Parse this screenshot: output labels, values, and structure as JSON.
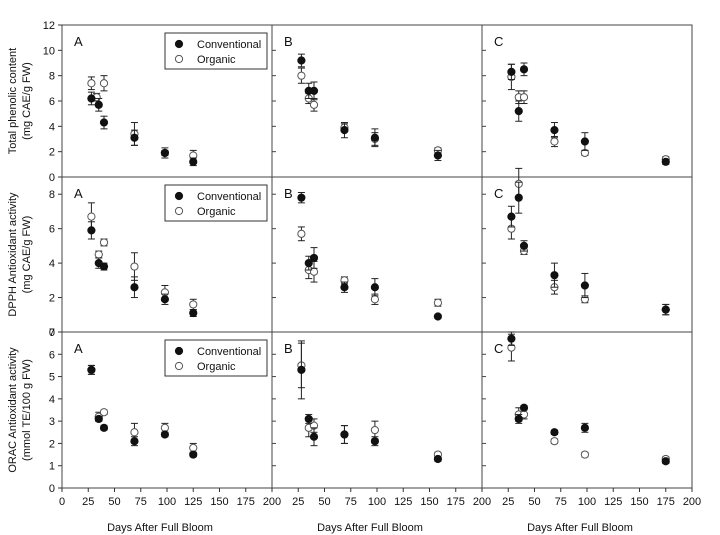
{
  "chart_data": {
    "type": "scatter",
    "xlabel": "Days After Full Bloom",
    "xlim": [
      0,
      200
    ],
    "xticks": [
      0,
      25,
      50,
      75,
      100,
      125,
      150,
      175,
      200
    ],
    "series_names": [
      "Conventional",
      "Organic"
    ],
    "legend_position": "top-right",
    "grid": false,
    "rows": [
      {
        "ylabel": [
          "Total phenolic content",
          "(mg CAE/g FW)"
        ],
        "ylim": [
          0,
          12
        ],
        "yticks": [
          0,
          2,
          4,
          6,
          8,
          10,
          12
        ],
        "show_legend": true,
        "panels": [
          {
            "label": "A",
            "conventional": [
              {
                "x": 28,
                "y": 6.2,
                "err": 0.5
              },
              {
                "x": 35,
                "y": 5.7,
                "err": 0.5
              },
              {
                "x": 40,
                "y": 4.3,
                "err": 0.5
              },
              {
                "x": 69,
                "y": 3.1,
                "err": 0.6
              },
              {
                "x": 98,
                "y": 1.9,
                "err": 0.2
              },
              {
                "x": 125,
                "y": 1.2,
                "err": 0.3
              }
            ],
            "organic": [
              {
                "x": 28,
                "y": 7.4,
                "err": 0.5
              },
              {
                "x": 33,
                "y": 6.3,
                "err": 0.3
              },
              {
                "x": 40,
                "y": 7.4,
                "err": 0.6
              },
              {
                "x": 69,
                "y": 3.4,
                "err": 0.9
              },
              {
                "x": 98,
                "y": 1.9,
                "err": 0.4
              },
              {
                "x": 125,
                "y": 1.7,
                "err": 0.4
              }
            ]
          },
          {
            "label": "B",
            "conventional": [
              {
                "x": 28,
                "y": 9.2,
                "err": 0.5
              },
              {
                "x": 35,
                "y": 6.8,
                "err": 0.6
              },
              {
                "x": 40,
                "y": 6.8,
                "err": 0.7
              },
              {
                "x": 69,
                "y": 3.7,
                "err": 0.6
              },
              {
                "x": 98,
                "y": 3.1,
                "err": 0.7
              },
              {
                "x": 158,
                "y": 1.7,
                "err": 0.4
              }
            ],
            "organic": [
              {
                "x": 28,
                "y": 8.0,
                "err": 0.6
              },
              {
                "x": 35,
                "y": 6.2,
                "err": 0.4
              },
              {
                "x": 40,
                "y": 5.7,
                "err": 0.5
              },
              {
                "x": 69,
                "y": 3.9,
                "err": 0.3
              },
              {
                "x": 98,
                "y": 3.0,
                "err": 0.5
              },
              {
                "x": 158,
                "y": 2.1,
                "err": 0.2
              }
            ]
          },
          {
            "label": "C",
            "conventional": [
              {
                "x": 28,
                "y": 8.3,
                "err": 0.6
              },
              {
                "x": 35,
                "y": 5.2,
                "err": 0.8
              },
              {
                "x": 40,
                "y": 8.5,
                "err": 0.5
              },
              {
                "x": 69,
                "y": 3.7,
                "err": 0.6
              },
              {
                "x": 98,
                "y": 2.8,
                "err": 0.7
              },
              {
                "x": 175,
                "y": 1.2,
                "err": 0.2
              }
            ],
            "organic": [
              {
                "x": 28,
                "y": 7.9,
                "err": 1.0
              },
              {
                "x": 35,
                "y": 6.3,
                "err": 0.5
              },
              {
                "x": 40,
                "y": 6.3,
                "err": 0.5
              },
              {
                "x": 69,
                "y": 2.8,
                "err": 0.4
              },
              {
                "x": 98,
                "y": 1.9,
                "err": 0.2
              },
              {
                "x": 175,
                "y": 1.4,
                "err": 0.2
              }
            ]
          }
        ]
      },
      {
        "ylabel": [
          "DPPH Antioxidant activity",
          "(mg CAE/g FW)"
        ],
        "ylim": [
          0,
          9
        ],
        "yticks": [
          0,
          2,
          4,
          6,
          8
        ],
        "show_legend": true,
        "panels": [
          {
            "label": "A",
            "conventional": [
              {
                "x": 28,
                "y": 5.9,
                "err": 0.5
              },
              {
                "x": 35,
                "y": 4.0,
                "err": 0.3
              },
              {
                "x": 40,
                "y": 3.8,
                "err": 0.2
              },
              {
                "x": 69,
                "y": 2.6,
                "err": 0.6
              },
              {
                "x": 98,
                "y": 1.9,
                "err": 0.3
              },
              {
                "x": 125,
                "y": 1.1,
                "err": 0.2
              }
            ],
            "organic": [
              {
                "x": 28,
                "y": 6.7,
                "err": 0.8
              },
              {
                "x": 35,
                "y": 4.5,
                "err": 0.2
              },
              {
                "x": 40,
                "y": 5.2,
                "err": 0.2
              },
              {
                "x": 69,
                "y": 3.8,
                "err": 0.8
              },
              {
                "x": 98,
                "y": 2.3,
                "err": 0.4
              },
              {
                "x": 125,
                "y": 1.6,
                "err": 0.3
              }
            ]
          },
          {
            "label": "B",
            "conventional": [
              {
                "x": 28,
                "y": 7.8,
                "err": 0.3
              },
              {
                "x": 35,
                "y": 4.0,
                "err": 0.4
              },
              {
                "x": 40,
                "y": 4.3,
                "err": 0.6
              },
              {
                "x": 69,
                "y": 2.6,
                "err": 0.3
              },
              {
                "x": 98,
                "y": 2.6,
                "err": 0.5
              },
              {
                "x": 158,
                "y": 0.9,
                "err": 0.1
              }
            ],
            "organic": [
              {
                "x": 28,
                "y": 5.7,
                "err": 0.4
              },
              {
                "x": 35,
                "y": 3.6,
                "err": 0.5
              },
              {
                "x": 40,
                "y": 3.5,
                "err": 0.6
              },
              {
                "x": 69,
                "y": 3.0,
                "err": 0.2
              },
              {
                "x": 98,
                "y": 1.9,
                "err": 0.3
              },
              {
                "x": 158,
                "y": 1.7,
                "err": 0.2
              }
            ]
          },
          {
            "label": "C",
            "conventional": [
              {
                "x": 28,
                "y": 6.7,
                "err": 0.6
              },
              {
                "x": 35,
                "y": 7.8,
                "err": 0.9
              },
              {
                "x": 40,
                "y": 5.0,
                "err": 0.3
              },
              {
                "x": 69,
                "y": 3.3,
                "err": 0.7
              },
              {
                "x": 98,
                "y": 2.7,
                "err": 0.7
              },
              {
                "x": 175,
                "y": 1.3,
                "err": 0.3
              }
            ],
            "organic": [
              {
                "x": 28,
                "y": 6.0,
                "err": 0.6
              },
              {
                "x": 35,
                "y": 8.6,
                "err": 0.9
              },
              {
                "x": 40,
                "y": 4.7,
                "err": 0.2
              },
              {
                "x": 69,
                "y": 2.6,
                "err": 0.4
              },
              {
                "x": 98,
                "y": 1.9,
                "err": 0.2
              },
              {
                "x": 175,
                "y": 1.3,
                "err": 0.3
              }
            ]
          }
        ]
      },
      {
        "ylabel": [
          "ORAC Antioxidant activity",
          "(mmol TE/100 g FW)"
        ],
        "ylim": [
          0,
          7
        ],
        "yticks": [
          0,
          1,
          2,
          3,
          4,
          5,
          6,
          7
        ],
        "show_legend": true,
        "panels": [
          {
            "label": "A",
            "conventional": [
              {
                "x": 28,
                "y": 5.3,
                "err": 0.2
              },
              {
                "x": 35,
                "y": 3.1,
                "err": 0.1
              },
              {
                "x": 40,
                "y": 2.7,
                "err": 0.1
              },
              {
                "x": 69,
                "y": 2.1,
                "err": 0.2
              },
              {
                "x": 98,
                "y": 2.4,
                "err": 0.1
              },
              {
                "x": 125,
                "y": 1.5,
                "err": 0.1
              }
            ],
            "organic": [
              {
                "x": 28,
                "y": 5.3,
                "err": 0.2
              },
              {
                "x": 35,
                "y": 3.2,
                "err": 0.2
              },
              {
                "x": 40,
                "y": 3.4,
                "err": 0.1
              },
              {
                "x": 69,
                "y": 2.5,
                "err": 0.4
              },
              {
                "x": 98,
                "y": 2.7,
                "err": 0.2
              },
              {
                "x": 125,
                "y": 1.8,
                "err": 0.2
              }
            ]
          },
          {
            "label": "B",
            "conventional": [
              {
                "x": 28,
                "y": 5.3,
                "err": 1.3
              },
              {
                "x": 35,
                "y": 3.1,
                "err": 0.2
              },
              {
                "x": 40,
                "y": 2.3,
                "err": 0.4
              },
              {
                "x": 69,
                "y": 2.4,
                "err": 0.4
              },
              {
                "x": 98,
                "y": 2.1,
                "err": 0.2
              },
              {
                "x": 158,
                "y": 1.3,
                "err": 0.1
              }
            ],
            "organic": [
              {
                "x": 28,
                "y": 5.5,
                "err": 1.0
              },
              {
                "x": 35,
                "y": 2.7,
                "err": 0.4
              },
              {
                "x": 40,
                "y": 2.8,
                "err": 0.3
              },
              {
                "x": 69,
                "y": 2.4,
                "err": 0.4
              },
              {
                "x": 98,
                "y": 2.6,
                "err": 0.4
              },
              {
                "x": 158,
                "y": 1.5,
                "err": 0.1
              }
            ]
          },
          {
            "label": "C",
            "conventional": [
              {
                "x": 28,
                "y": 6.7,
                "err": 0.3
              },
              {
                "x": 35,
                "y": 3.1,
                "err": 0.2
              },
              {
                "x": 40,
                "y": 3.6,
                "err": 0.1
              },
              {
                "x": 69,
                "y": 2.5,
                "err": 0.1
              },
              {
                "x": 98,
                "y": 2.7,
                "err": 0.2
              },
              {
                "x": 175,
                "y": 1.2,
                "err": 0.1
              }
            ],
            "organic": [
              {
                "x": 28,
                "y": 6.3,
                "err": 0.6
              },
              {
                "x": 35,
                "y": 3.3,
                "err": 0.3
              },
              {
                "x": 40,
                "y": 3.3,
                "err": 0.2
              },
              {
                "x": 69,
                "y": 2.1,
                "err": 0.1
              },
              {
                "x": 98,
                "y": 1.5,
                "err": 0.1
              },
              {
                "x": 175,
                "y": 1.3,
                "err": 0.1
              }
            ]
          }
        ]
      }
    ]
  }
}
